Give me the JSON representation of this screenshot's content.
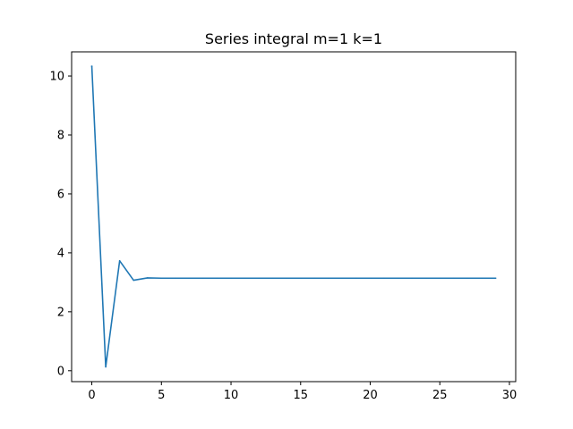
{
  "chart_data": {
    "type": "line",
    "title": "Series integral m=1 k=1",
    "xlabel": "",
    "ylabel": "",
    "xlim": [
      -1.45,
      30.45
    ],
    "ylim": [
      -0.37,
      10.82
    ],
    "xticks": [
      0,
      5,
      10,
      15,
      20,
      25,
      30
    ],
    "yticks": [
      0,
      2,
      4,
      6,
      8,
      10
    ],
    "grid": false,
    "legend": "none",
    "series": [
      {
        "color": "#1f77b4",
        "x": [
          0,
          1,
          2,
          3,
          4,
          5,
          6,
          7,
          8,
          9,
          10,
          11,
          12,
          13,
          14,
          15,
          16,
          17,
          18,
          19,
          20,
          21,
          22,
          23,
          24,
          25,
          26,
          27,
          28,
          29
        ],
        "values": [
          10.33,
          0.13,
          3.73,
          3.07,
          3.15,
          3.14,
          3.14,
          3.14,
          3.14,
          3.14,
          3.14,
          3.14,
          3.14,
          3.14,
          3.14,
          3.14,
          3.14,
          3.14,
          3.14,
          3.14,
          3.14,
          3.14,
          3.14,
          3.14,
          3.14,
          3.14,
          3.14,
          3.14,
          3.14,
          3.14
        ]
      }
    ]
  }
}
